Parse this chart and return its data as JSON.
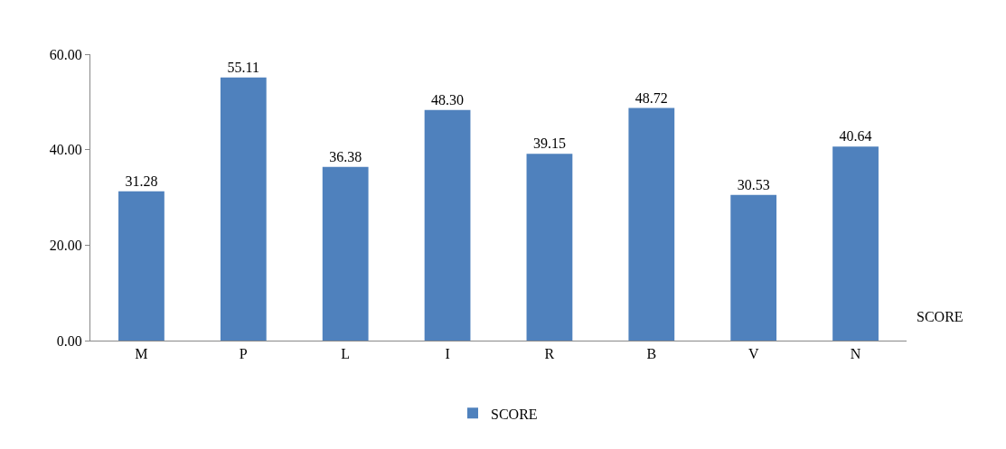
{
  "chart_data": {
    "type": "bar",
    "categories": [
      "M",
      "P",
      "L",
      "I",
      "R",
      "B",
      "V",
      "N"
    ],
    "series": [
      {
        "name": "SCORE",
        "color": "#4f81bd",
        "values": [
          31.28,
          55.11,
          36.38,
          48.3,
          39.15,
          48.72,
          30.53,
          40.64
        ]
      }
    ],
    "value_labels": [
      "31.28",
      "55.11",
      "36.38",
      "48.30",
      "39.15",
      "48.72",
      "30.53",
      "40.64"
    ],
    "ylim": [
      0,
      60
    ],
    "yticks": [
      {
        "value": 0,
        "label": "0.00"
      },
      {
        "value": 20,
        "label": "20.00"
      },
      {
        "value": 40,
        "label": "40.00"
      },
      {
        "value": 60,
        "label": "60.00"
      }
    ],
    "annotations": [
      "SCORE"
    ],
    "legend": "bottom",
    "grid": false
  }
}
